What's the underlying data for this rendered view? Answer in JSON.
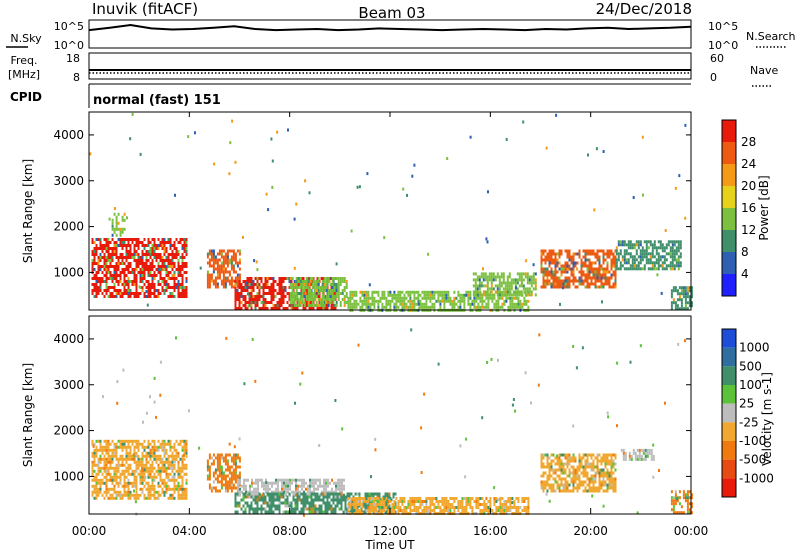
{
  "header": {
    "station": "Inuvik (fitACF)",
    "beam": "Beam 03",
    "date": "24/Dec/2018"
  },
  "chart_data": [
    {
      "type": "line",
      "panel": "noise",
      "left_label": "N.Sky",
      "right_label": "N.Search",
      "left_ticks": [
        "10^5",
        "10^0"
      ],
      "right_ticks": [
        "10^5",
        "10^0"
      ],
      "scale": "log",
      "series": [
        {
          "values": [
            3.2,
            3.6,
            4.1,
            3.5,
            3.3,
            3.4,
            3.6,
            3.9,
            3.4,
            3.2,
            3.3,
            3.4,
            3.2,
            3.3,
            3.5,
            3.4,
            3.3,
            3.2,
            3.3,
            3.4,
            3.3,
            3.2,
            3.4,
            3.3,
            3.5,
            3.6,
            3.4,
            3.5,
            3.6,
            3.8
          ]
        }
      ]
    },
    {
      "type": "line",
      "panel": "frequency",
      "left_label": "Freq.",
      "left_unit": "[MHz]",
      "right_label": "Nave",
      "left_ticks": [
        "18",
        "8"
      ],
      "right_ticks": [
        "60",
        "0"
      ],
      "series": [
        {
          "values": [
            10.6,
            10.6,
            10.6,
            10.6,
            10.6,
            10.6,
            10.6,
            10.6,
            10.6,
            10.6,
            10.6,
            10.6
          ]
        }
      ]
    },
    {
      "type": "table",
      "panel": "cpid",
      "label": "CPID",
      "text": "normal (fast) 151"
    },
    {
      "type": "heatmap",
      "panel": "power",
      "ylabel": "Slant Range [km]",
      "ylim": [
        180,
        4500
      ],
      "yticks": [
        1000,
        2000,
        3000,
        4000
      ],
      "colorbar_label": "Power [dB]",
      "colorbar_ticks": [
        4,
        8,
        12,
        16,
        20,
        24,
        28
      ],
      "colorbar_colors": [
        "#1f1fff",
        "#2e5fb3",
        "#3f8f6a",
        "#7cc040",
        "#e6d21a",
        "#f59a16",
        "#ef5a12",
        "#e81b0b"
      ],
      "echo_regions": [
        {
          "t_start": 0.1,
          "t_end": 3.9,
          "r_low": 500,
          "r_high": 1750,
          "level": 28
        },
        {
          "t_start": 0.9,
          "t_end": 1.4,
          "r_low": 1800,
          "r_high": 2300,
          "level": 12
        },
        {
          "t_start": 4.7,
          "t_end": 6.0,
          "r_low": 700,
          "r_high": 1500,
          "level": 24
        },
        {
          "t_start": 5.8,
          "t_end": 9.8,
          "r_low": 200,
          "r_high": 900,
          "level": 28
        },
        {
          "t_start": 8.0,
          "t_end": 10.3,
          "r_low": 300,
          "r_high": 900,
          "level": 12
        },
        {
          "t_start": 10.3,
          "t_end": 17.5,
          "r_low": 180,
          "r_high": 600,
          "level": 12
        },
        {
          "t_start": 15.3,
          "t_end": 17.8,
          "r_low": 500,
          "r_high": 1000,
          "level": 12
        },
        {
          "t_start": 18.0,
          "t_end": 21.0,
          "r_low": 650,
          "r_high": 1500,
          "level": 24
        },
        {
          "t_start": 21.0,
          "t_end": 23.6,
          "r_low": 1100,
          "r_high": 1700,
          "level": 8
        },
        {
          "t_start": 23.2,
          "t_end": 24.0,
          "r_low": 180,
          "r_high": 700,
          "level": 8
        }
      ]
    },
    {
      "type": "heatmap",
      "panel": "velocity",
      "ylabel": "Slant Range [km]",
      "ylim": [
        180,
        4500
      ],
      "yticks": [
        1000,
        2000,
        3000,
        4000
      ],
      "xlabel": "Time UT",
      "xlim": [
        0,
        24
      ],
      "xtick_labels": [
        "00:00",
        "04:00",
        "08:00",
        "12:00",
        "16:00",
        "20:00",
        "00:00"
      ],
      "colorbar_label": "Velocity [m s-1]",
      "colorbar_ticks": [
        "1000",
        "500",
        "100",
        "25",
        "-25",
        "-100",
        "-500",
        "-1000"
      ],
      "colorbar_colors": [
        "#1e4ed8",
        "#2e6fa0",
        "#3f8f6a",
        "#5cc23a",
        "#bdbdbd",
        "#f0a830",
        "#f07a10",
        "#e84b12",
        "#e81b0b"
      ],
      "echo_regions": [
        {
          "t_start": 0.1,
          "t_end": 3.9,
          "r_low": 500,
          "r_high": 1800,
          "level": -100
        },
        {
          "t_start": 4.7,
          "t_end": 6.0,
          "r_low": 700,
          "r_high": 1500,
          "level": -500
        },
        {
          "t_start": 5.9,
          "t_end": 10.2,
          "r_low": 600,
          "r_high": 950,
          "level": 0
        },
        {
          "t_start": 5.8,
          "t_end": 12.2,
          "r_low": 220,
          "r_high": 650,
          "level": 100
        },
        {
          "t_start": 10.3,
          "t_end": 17.5,
          "r_low": 180,
          "r_high": 550,
          "level": -100
        },
        {
          "t_start": 18.0,
          "t_end": 21.0,
          "r_low": 650,
          "r_high": 1500,
          "level": -100
        },
        {
          "t_start": 21.2,
          "t_end": 22.5,
          "r_low": 1350,
          "r_high": 1600,
          "level": 0
        },
        {
          "t_start": 23.2,
          "t_end": 24.0,
          "r_low": 200,
          "r_high": 700,
          "level": -500
        }
      ]
    }
  ]
}
